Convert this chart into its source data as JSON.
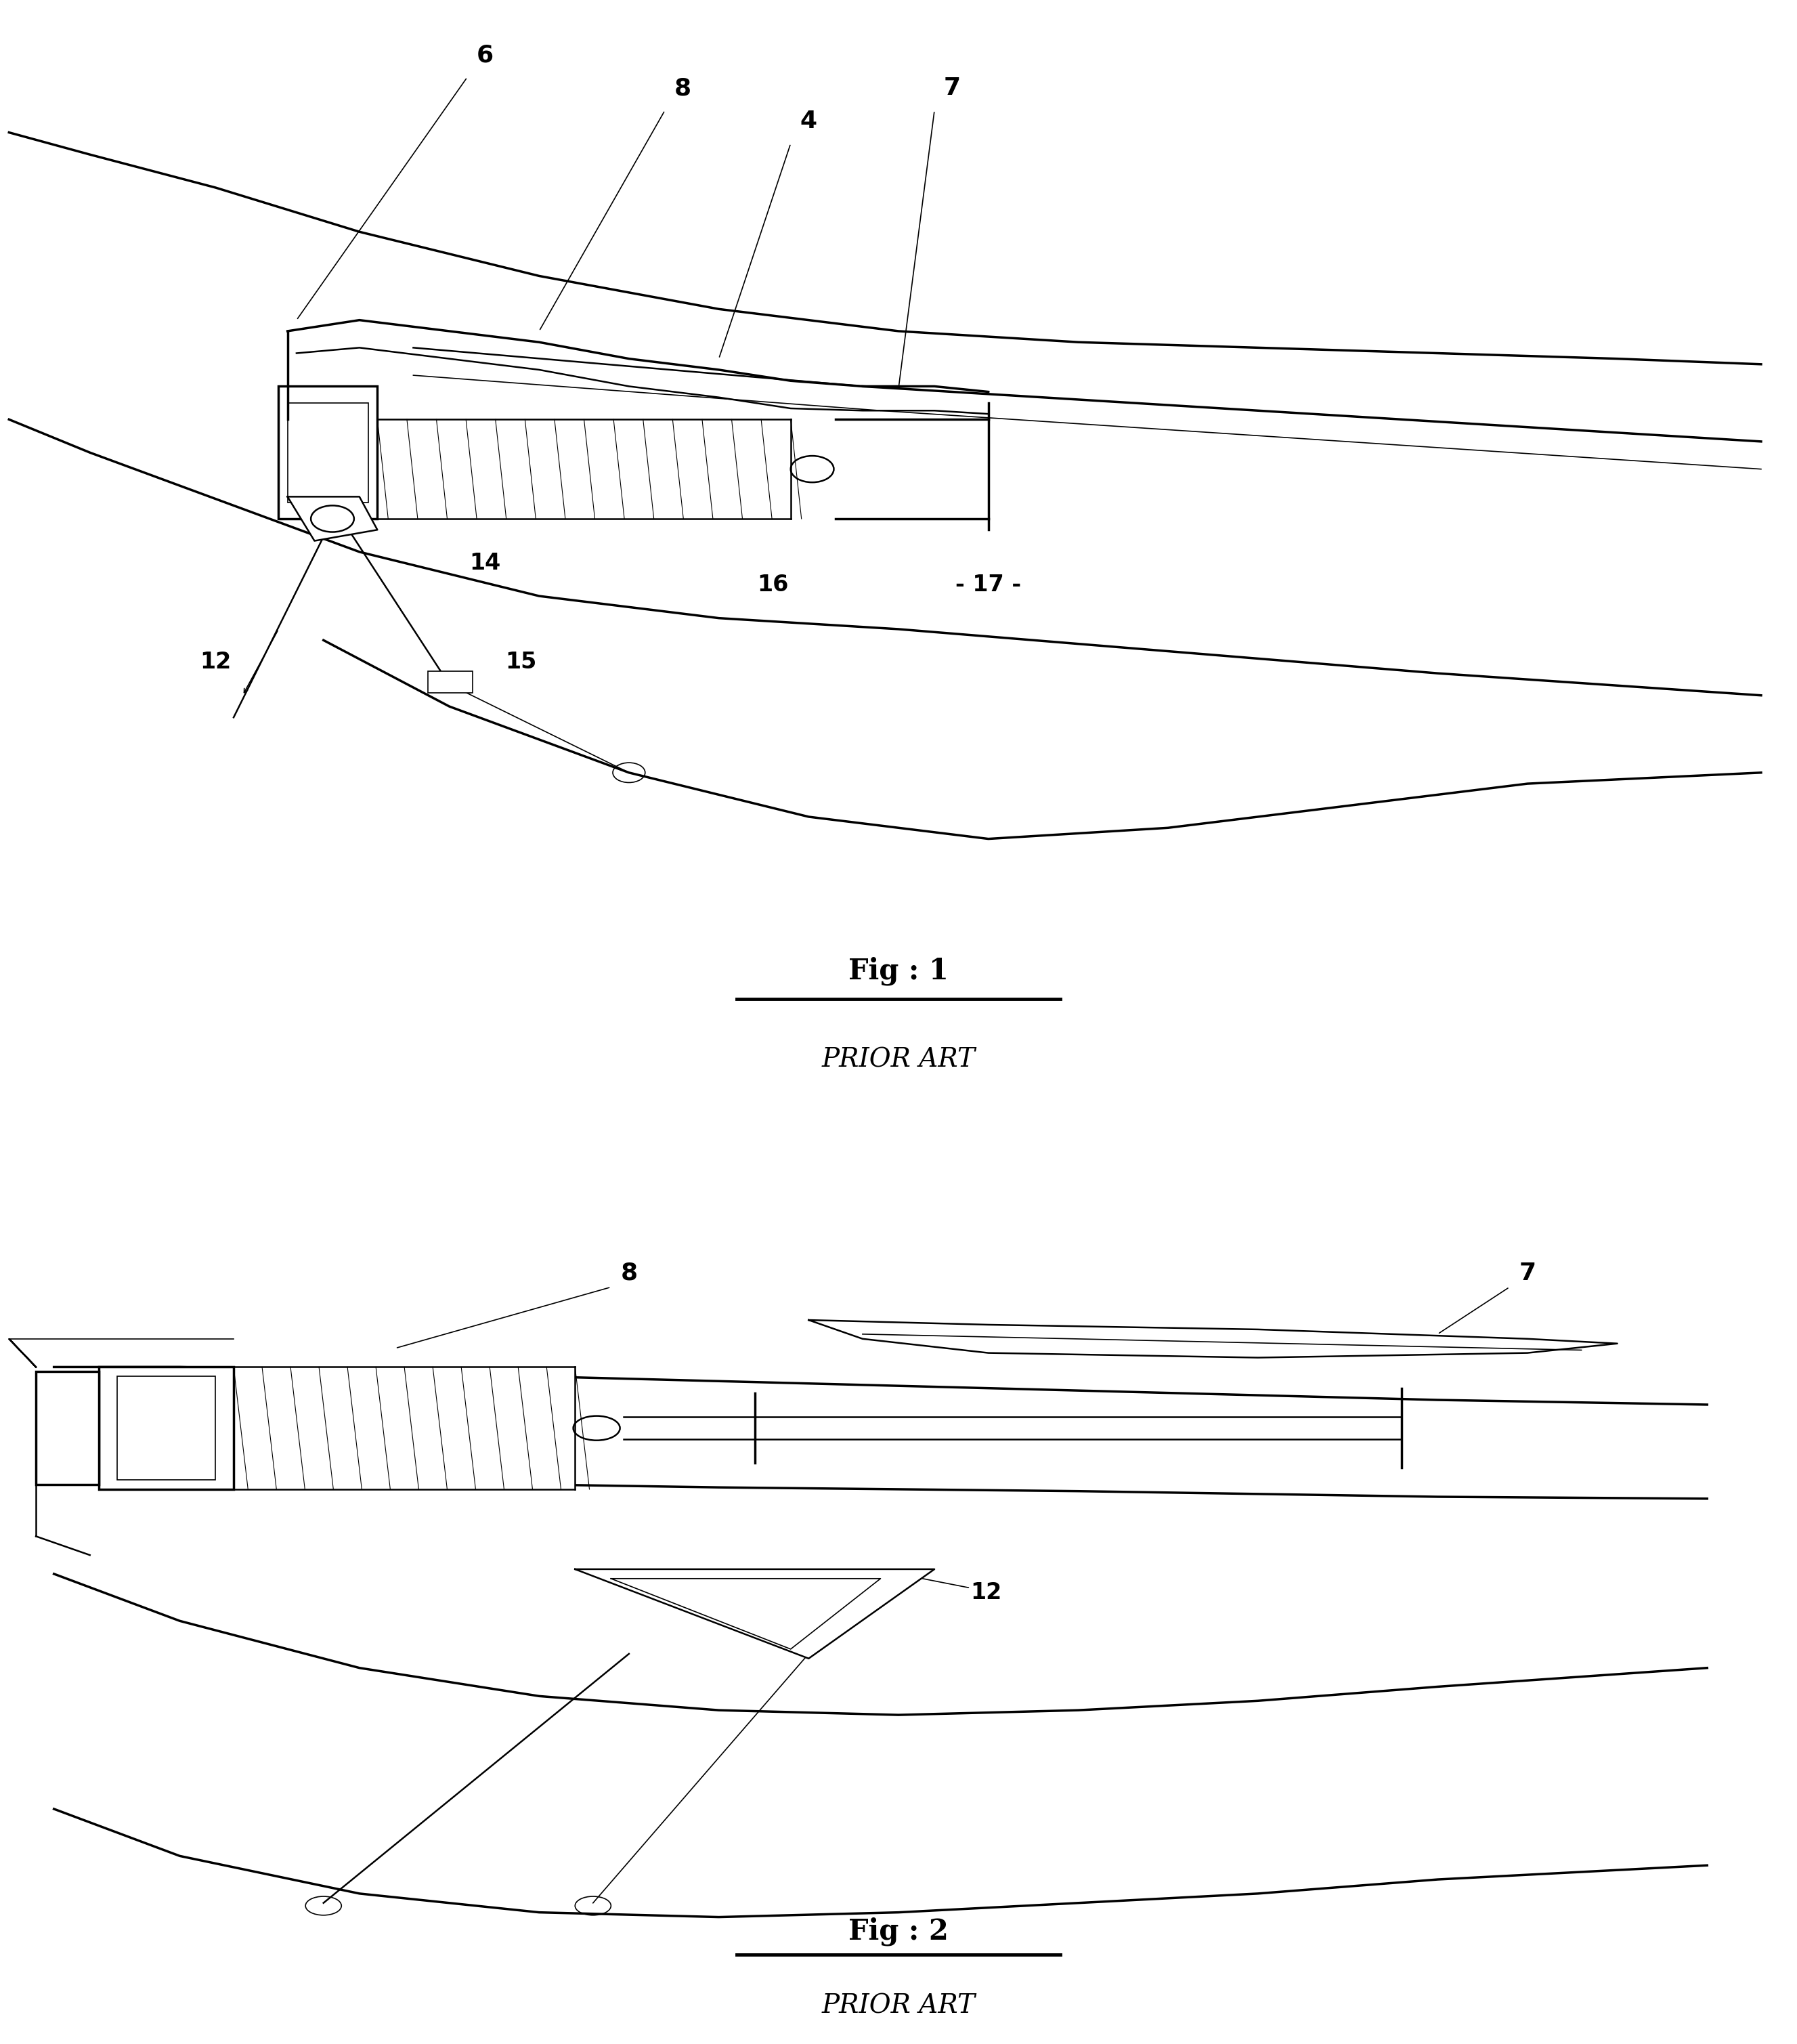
{
  "background_color": "#ffffff",
  "fig_width": 26.54,
  "fig_height": 30.18,
  "fig1_caption": "Fig : 1",
  "fig2_caption": "Fig : 2",
  "prior_art": "PRIOR ART",
  "lw_thick": 2.5,
  "lw_med": 1.8,
  "lw_thin": 1.2,
  "lw_hairline": 0.8,
  "color": "black"
}
